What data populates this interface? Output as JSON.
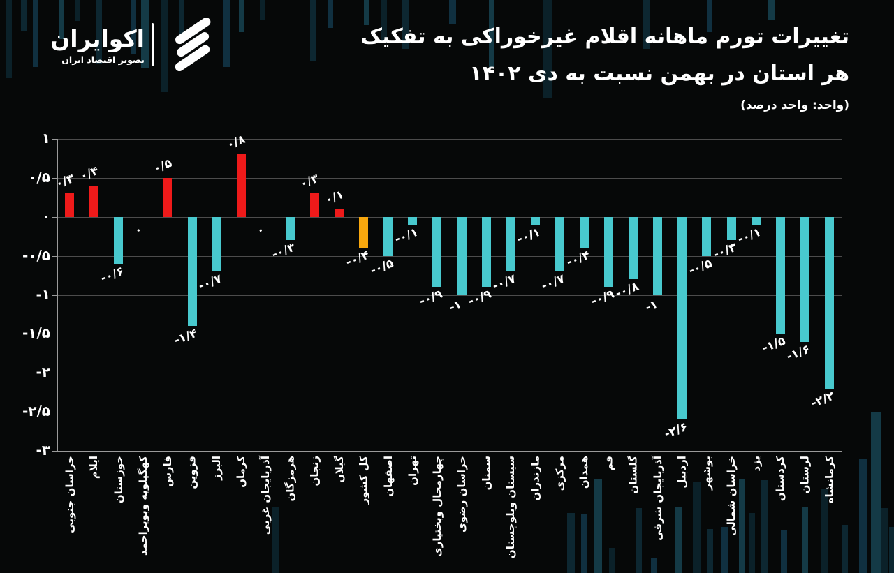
{
  "brand": {
    "name": "اکوایران",
    "tagline": "تصویر اقتصاد ایران"
  },
  "header": {
    "title_line1": "تغییرات تورم ماهانه اقلام غیرخوراکی به تفکیک",
    "title_line2": "هر استان در بهمن نسبت به دی ۱۴۰۲",
    "unit_note": "(واحد: واحد درصد)"
  },
  "chart_data": {
    "type": "bar",
    "title": "تغییرات تورم ماهانه اقلام غیرخوراکی به تفکیک هر استان در بهمن نسبت به دی ۱۴۰۲",
    "unit": "واحد درصد",
    "ylim": [
      -3,
      1
    ],
    "grid": true,
    "yticks_values": [
      1,
      0.5,
      0,
      -0.5,
      -1,
      -1.5,
      -2,
      -2.5,
      -3
    ],
    "yticks_labels": [
      "۱",
      "۰/۵",
      "۰",
      "-۰/۵",
      "-۱",
      "-۱/۵",
      "-۲",
      "-۲/۵",
      "-۳"
    ],
    "colors": {
      "positive": "#ee1a1a",
      "negative": "#48c9ce",
      "national": "#f7a70e"
    },
    "national_index": 12,
    "categories": [
      "خراسان جنوبی",
      "ایلام",
      "خوزستان",
      "کهگیلویه وبویراحمد",
      "فارس",
      "قزوین",
      "البرز",
      "کرمان",
      "آذربایجان غربی",
      "هرمزگان",
      "زنجان",
      "گیلان",
      "کل کشور",
      "اصفهان",
      "تهران",
      "چهارمحال وبختیاری",
      "خراسان رضوی",
      "سمنان",
      "سیستان وبلوچستان",
      "مازندران",
      "مرکزی",
      "همدان",
      "قم",
      "گلستان",
      "آذربایجان شرقی",
      "اردبیل",
      "بوشهر",
      "خراسان شمالی",
      "یزد",
      "کردستان",
      "لرستان",
      "کرمانشاه"
    ],
    "values": [
      0.3,
      0.4,
      -0.6,
      0,
      0.5,
      -1.4,
      -0.7,
      0.8,
      0,
      -0.3,
      0.3,
      0.1,
      -0.4,
      -0.5,
      -0.1,
      -0.9,
      -1,
      -0.9,
      -0.7,
      -0.1,
      -0.7,
      -0.4,
      -0.9,
      -0.8,
      -1,
      -2.6,
      -0.5,
      -0.3,
      -0.1,
      -1.5,
      -1.6,
      -2.2
    ],
    "value_labels": [
      "۰/۳",
      "۰/۴",
      "-۰/۶",
      "۰",
      "۰/۵",
      "-۱/۴",
      "-۰/۷",
      "۰/۸",
      "۰",
      "-۰/۳",
      "۰/۳",
      "۰/۱",
      "-۰/۴",
      "-۰/۵",
      "-۰/۱",
      "-۰/۹",
      "-۱",
      "-۰/۹",
      "-۰/۷",
      "-۰/۱",
      "-۰/۷",
      "-۰/۴",
      "-۰/۹",
      "-۰/۸",
      "-۱",
      "-۲/۶",
      "-۰/۵",
      "-۰/۳",
      "-۰/۱",
      "-۱/۵",
      "-۱/۶",
      "-۲/۲"
    ]
  }
}
